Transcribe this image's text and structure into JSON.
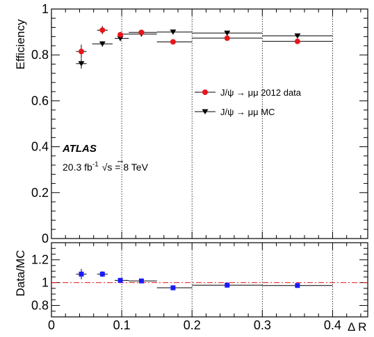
{
  "chart_data": [
    {
      "type": "scatter",
      "panel": "main",
      "ylabel": "Efficiency",
      "ylim": [
        0,
        1
      ],
      "xlim": [
        0,
        0.45
      ],
      "yticks": [
        0,
        0.2,
        0.4,
        0.6,
        0.8,
        1
      ],
      "ytick_labels": [
        "0",
        "0.2",
        "0.4",
        "0.6",
        "0.8",
        "1"
      ],
      "grid": "vertical dotted lines at x = 0.1, 0.2, 0.3, 0.4",
      "series": [
        {
          "name": "J/ψ → μμ 2012 data",
          "marker": "circle",
          "color": "#e8141a",
          "points": [
            {
              "x": 0.0425,
              "xlo": 0.035,
              "xhi": 0.05,
              "y": 0.815,
              "yerr": 0.03
            },
            {
              "x": 0.0725,
              "xlo": 0.065,
              "xhi": 0.08,
              "y": 0.908,
              "yerr": 0.018
            },
            {
              "x": 0.098,
              "xlo": 0.095,
              "xhi": 0.1,
              "y": 0.888,
              "yerr": 0.012
            },
            {
              "x": 0.128,
              "xlo": 0.11,
              "xhi": 0.15,
              "y": 0.898,
              "yerr": 0.008
            },
            {
              "x": 0.173,
              "xlo": 0.15,
              "xhi": 0.2,
              "y": 0.857,
              "yerr": 0.006
            },
            {
              "x": 0.25,
              "xlo": 0.2,
              "xhi": 0.3,
              "y": 0.873,
              "yerr": 0.005
            },
            {
              "x": 0.35,
              "xlo": 0.3,
              "xhi": 0.4,
              "y": 0.859,
              "yerr": 0.005
            }
          ]
        },
        {
          "name": "J/ψ → μμ MC",
          "marker": "triangle-down",
          "color": "#000000",
          "points": [
            {
              "x": 0.0425,
              "xlo": 0.035,
              "xhi": 0.05,
              "y": 0.762,
              "yerr": 0.022
            },
            {
              "x": 0.0725,
              "xlo": 0.058,
              "xhi": 0.087,
              "y": 0.848,
              "yerr": 0.012
            },
            {
              "x": 0.098,
              "xlo": 0.09,
              "xhi": 0.11,
              "y": 0.872,
              "yerr": 0.012
            },
            {
              "x": 0.128,
              "xlo": 0.1,
              "xhi": 0.15,
              "y": 0.891,
              "yerr": 0.01
            },
            {
              "x": 0.173,
              "xlo": 0.15,
              "xhi": 0.2,
              "y": 0.9,
              "yerr": 0.006
            },
            {
              "x": 0.25,
              "xlo": 0.2,
              "xhi": 0.3,
              "y": 0.895,
              "yerr": 0.005
            },
            {
              "x": 0.35,
              "xlo": 0.3,
              "xhi": 0.4,
              "y": 0.883,
              "yerr": 0.005
            }
          ]
        }
      ],
      "legend_position": "middle-right",
      "annotations": {
        "experiment": "ATLAS",
        "luminosity": "20.3 fb",
        "luminosity_exponent": "-1",
        "sqrt_s_prefix": "√",
        "energy": "s = 8 TeV"
      }
    },
    {
      "type": "scatter",
      "panel": "ratio",
      "ylabel": "Data/MC",
      "xlabel": "Δ R",
      "ylim": [
        0.7,
        1.35
      ],
      "xlim": [
        0,
        0.45
      ],
      "yticks": [
        0.8,
        1,
        1.2
      ],
      "ytick_labels": [
        "0.8",
        "1",
        "1.2"
      ],
      "xticks": [
        0,
        0.1,
        0.2,
        0.3,
        0.4
      ],
      "xtick_labels": [
        "0",
        "0.1",
        "0.2",
        "0.3",
        "0.4"
      ],
      "reference_line": {
        "y": 1,
        "color": "#e8141a",
        "style": "dash-dot"
      },
      "series": [
        {
          "marker": "square",
          "color": "#1a1aff",
          "points": [
            {
              "x": 0.0425,
              "xlo": 0.035,
              "xhi": 0.05,
              "y": 1.075,
              "yerr": 0.045
            },
            {
              "x": 0.0725,
              "xlo": 0.065,
              "xhi": 0.08,
              "y": 1.075,
              "yerr": 0.025
            },
            {
              "x": 0.098,
              "xlo": 0.09,
              "xhi": 0.11,
              "y": 1.02,
              "yerr": 0.015
            },
            {
              "x": 0.128,
              "xlo": 0.11,
              "xhi": 0.15,
              "y": 1.015,
              "yerr": 0.01
            },
            {
              "x": 0.173,
              "xlo": 0.15,
              "xhi": 0.2,
              "y": 0.955,
              "yerr": 0.008
            },
            {
              "x": 0.25,
              "xlo": 0.2,
              "xhi": 0.3,
              "y": 0.978,
              "yerr": 0.006
            },
            {
              "x": 0.35,
              "xlo": 0.3,
              "xhi": 0.4,
              "y": 0.975,
              "yerr": 0.006
            }
          ]
        }
      ]
    }
  ]
}
